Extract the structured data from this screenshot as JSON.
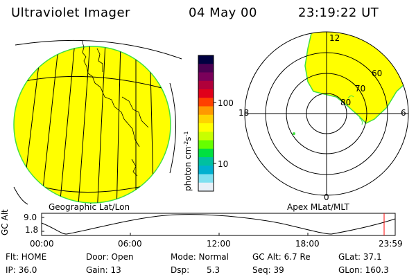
{
  "header": {
    "instrument": "Ultraviolet Imager",
    "date": "04 May 00",
    "time": "23:19:22 UT"
  },
  "colorbar": {
    "unit_label": "photon cm",
    "unit_sup1": "-2",
    "unit_mid": "s",
    "unit_sup2": "-1",
    "ticks": [
      "100",
      "10"
    ],
    "colors": [
      "#000040",
      "#4b0052",
      "#7a005a",
      "#b0003a",
      "#e0001a",
      "#ff4000",
      "#ff9900",
      "#ffd400",
      "#ffff00",
      "#c8ff00",
      "#66ff00",
      "#00e040",
      "#00c0a0",
      "#00b0d0",
      "#80e0f0",
      "#e8f0f8"
    ]
  },
  "globe_panel": {
    "label": "Geographic Lat/Lon",
    "fill_color": "#ffff00",
    "edge_color": "#40e040"
  },
  "polar_panel": {
    "label": "Apex MLat/MLT",
    "mlt_labels": [
      "12",
      "18",
      "6",
      "0"
    ],
    "mlat_labels": [
      "60",
      "70",
      "80"
    ],
    "fill_color": "#ffff00",
    "edge_color": "#40e040"
  },
  "altitude_plot": {
    "ylabel": "GC Alt",
    "y_ticks": [
      "9.0",
      "1.8"
    ],
    "x_ticks": [
      "00:00",
      "06:00",
      "12:00",
      "18:00",
      "23:59"
    ],
    "marker_color": "#ff0000"
  },
  "info": {
    "row1": {
      "filter": "Flt: HOME",
      "door": "Door: Open",
      "mode": "Mode: Normal",
      "gc_alt": "GC Alt: 6.7 Re",
      "glat": "GLat: 37.1"
    },
    "row2": {
      "ip": "IP: 36.0",
      "gain": "Gain: 13",
      "dsp_label": "Dsp:",
      "dsp_value": "5.3",
      "seq": "Seq: 39",
      "glon": "GLon: 160.3"
    }
  }
}
